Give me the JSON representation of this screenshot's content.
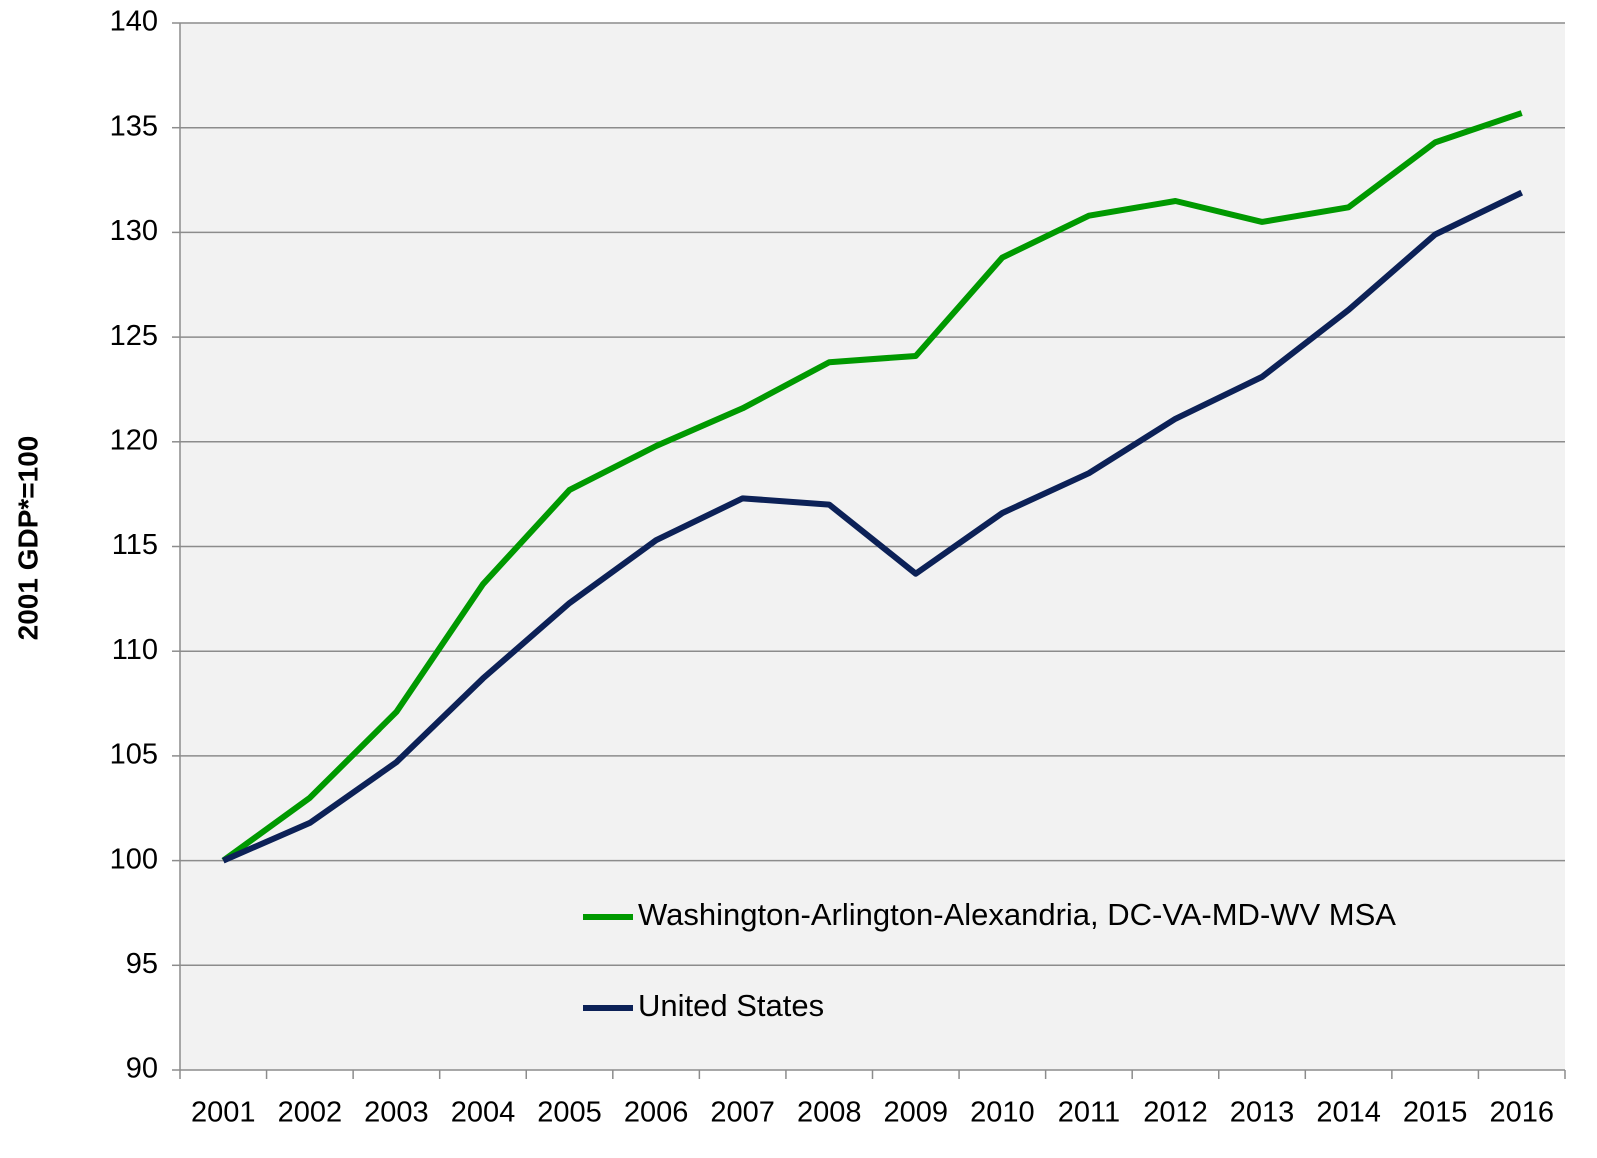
{
  "chart_data": {
    "type": "line",
    "y_label": "2001 GDP*=100",
    "categories": [
      "2001",
      "2002",
      "2003",
      "2004",
      "2005",
      "2006",
      "2007",
      "2008",
      "2009",
      "2010",
      "2011",
      "2012",
      "2013",
      "2014",
      "2015",
      "2016"
    ],
    "series": [
      {
        "name": "Washington-Arlington-Alexandria, DC-VA-MD-WV MSA",
        "color": "#009900",
        "values": [
          100,
          103.0,
          107.1,
          113.2,
          117.7,
          119.8,
          121.6,
          123.8,
          124.1,
          128.8,
          130.8,
          131.5,
          130.5,
          131.2,
          134.3,
          135.7
        ]
      },
      {
        "name": "United States",
        "color": "#0c2157",
        "values": [
          100,
          101.8,
          104.7,
          108.7,
          112.3,
          115.3,
          117.3,
          117.0,
          113.7,
          116.6,
          118.5,
          121.1,
          123.1,
          126.3,
          129.9,
          131.9
        ]
      }
    ],
    "ylim": [
      90,
      140
    ],
    "yticks": [
      90,
      95,
      100,
      105,
      110,
      115,
      120,
      125,
      130,
      135,
      140
    ],
    "grid": true,
    "legend": "bottom"
  }
}
